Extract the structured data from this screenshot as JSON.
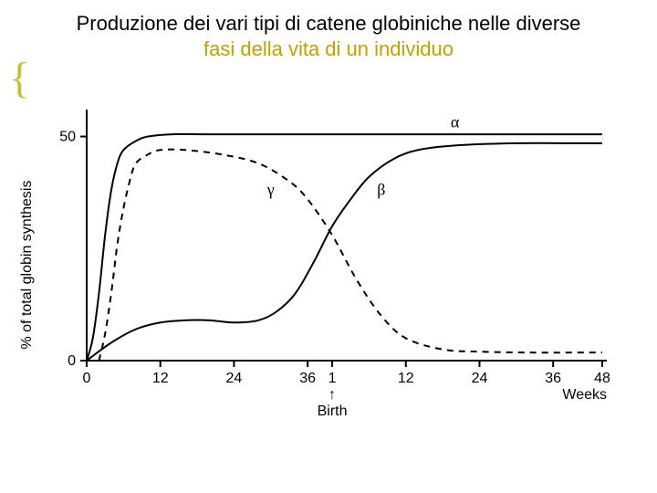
{
  "title": {
    "line1": "Produzione dei vari tipi di catene globiniche nelle diverse",
    "line2": "fasi della vita di un individuo",
    "line1_color": "#000000",
    "line2_color": "#bfa200",
    "fontsize": 22
  },
  "brace": {
    "char": "{",
    "color": "#cbbc3a",
    "fontsize": 48
  },
  "chart": {
    "type": "line",
    "background_color": "#ffffff",
    "axis_color": "#000000",
    "axis_linewidth": 2,
    "ylabel": "% of total globin synthesis",
    "ylabel_fontsize": 16,
    "y_ticks": [
      {
        "value": 0,
        "label": "0"
      },
      {
        "value": 50,
        "label": "50"
      }
    ],
    "x_ticks": [
      {
        "value": 0,
        "label": "0"
      },
      {
        "value": 12,
        "label": "12"
      },
      {
        "value": 24,
        "label": "24"
      },
      {
        "value": 36,
        "label": "36"
      },
      {
        "value": 40,
        "label": "1"
      },
      {
        "value": 52,
        "label": "12"
      },
      {
        "value": 64,
        "label": "24"
      },
      {
        "value": 76,
        "label": "36"
      },
      {
        "value": 84,
        "label": "48"
      }
    ],
    "x_axis_label_right": "Weeks",
    "birth_label": "Birth",
    "birth_arrow": "↑",
    "birth_x": 40,
    "x_range": [
      0,
      84
    ],
    "y_range": [
      0,
      55
    ],
    "series_labels": {
      "alpha": {
        "text": "α",
        "x": 60,
        "y": 52,
        "fontsize": 18
      },
      "beta": {
        "text": "β",
        "x": 48,
        "y": 37,
        "fontsize": 18
      },
      "gamma": {
        "text": "γ",
        "x": 30,
        "y": 37,
        "fontsize": 18
      }
    },
    "series": {
      "alpha": {
        "style": "solid",
        "color": "#000000",
        "linewidth": 2,
        "points": [
          [
            0,
            0
          ],
          [
            1,
            5
          ],
          [
            2,
            15
          ],
          [
            3,
            28
          ],
          [
            4,
            38
          ],
          [
            5,
            44
          ],
          [
            6,
            47
          ],
          [
            8,
            49
          ],
          [
            10,
            50
          ],
          [
            14,
            50.5
          ],
          [
            20,
            50.5
          ],
          [
            30,
            50.5
          ],
          [
            40,
            50.5
          ],
          [
            55,
            50.5
          ],
          [
            70,
            50.5
          ],
          [
            84,
            50.5
          ]
        ]
      },
      "gamma": {
        "style": "dashed",
        "color": "#000000",
        "linewidth": 2,
        "dash": "7 6",
        "points": [
          [
            2,
            0
          ],
          [
            3,
            6
          ],
          [
            4,
            15
          ],
          [
            5,
            26
          ],
          [
            6,
            34
          ],
          [
            7,
            40
          ],
          [
            8,
            44
          ],
          [
            10,
            46
          ],
          [
            12,
            47
          ],
          [
            16,
            47
          ],
          [
            22,
            46
          ],
          [
            28,
            44
          ],
          [
            33,
            40
          ],
          [
            36,
            36
          ],
          [
            40,
            28
          ],
          [
            44,
            18
          ],
          [
            48,
            10
          ],
          [
            52,
            5
          ],
          [
            58,
            2.5
          ],
          [
            64,
            2
          ],
          [
            72,
            1.8
          ],
          [
            80,
            1.8
          ],
          [
            84,
            1.8
          ]
        ]
      },
      "beta": {
        "style": "solid",
        "color": "#000000",
        "linewidth": 2,
        "points": [
          [
            0,
            0
          ],
          [
            4,
            4
          ],
          [
            8,
            7
          ],
          [
            12,
            8.5
          ],
          [
            16,
            9
          ],
          [
            20,
            9
          ],
          [
            24,
            8.5
          ],
          [
            28,
            9
          ],
          [
            31,
            11
          ],
          [
            34,
            15
          ],
          [
            37,
            22
          ],
          [
            40,
            30
          ],
          [
            43,
            36
          ],
          [
            46,
            41
          ],
          [
            50,
            45
          ],
          [
            54,
            47
          ],
          [
            60,
            48
          ],
          [
            70,
            48.5
          ],
          [
            80,
            48.5
          ],
          [
            84,
            48.5
          ]
        ]
      }
    },
    "tick_label_fontsize": 16,
    "greek_fontsize": 18
  }
}
